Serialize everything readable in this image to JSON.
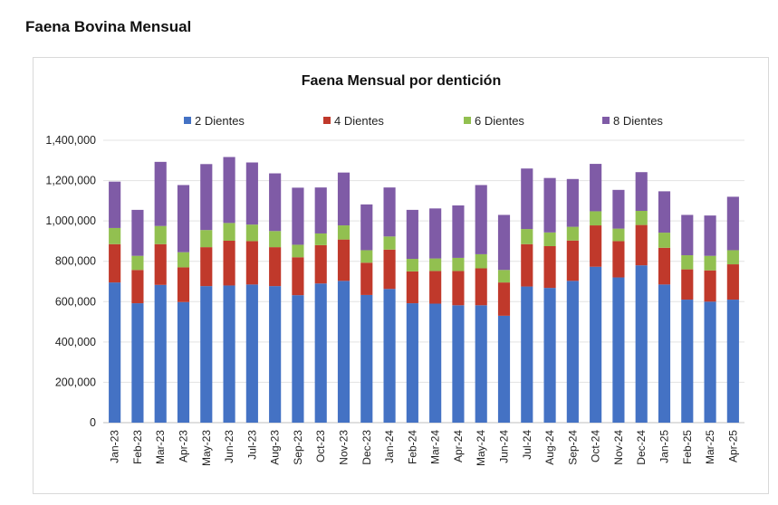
{
  "page": {
    "title": "Faena Bovina Mensual"
  },
  "chart_data": {
    "type": "bar",
    "stacked": true,
    "title": "Faena Mensual por dentición",
    "xlabel": "",
    "ylabel": "",
    "ylim": [
      0,
      1400000
    ],
    "yticks": [
      0,
      200000,
      400000,
      600000,
      800000,
      1000000,
      1200000,
      1400000
    ],
    "ytick_labels": [
      "0",
      "200,000",
      "400,000",
      "600,000",
      "800,000",
      "1,000,000",
      "1,200,000",
      "1,400,000"
    ],
    "grid": true,
    "legend_position": "top",
    "categories": [
      "Jan-23",
      "Feb-23",
      "Mar-23",
      "Apr-23",
      "May-23",
      "Jun-23",
      "Jul-23",
      "Aug-23",
      "Sep-23",
      "Oct-23",
      "Nov-23",
      "Dec-23",
      "Jan-24",
      "Feb-24",
      "Mar-24",
      "Apr-24",
      "May-24",
      "Jun-24",
      "Jul-24",
      "Aug-24",
      "Sep-24",
      "Oct-24",
      "Nov-24",
      "Dec-24",
      "Jan-25",
      "Feb-25",
      "Mar-25",
      "Apr-25"
    ],
    "series": [
      {
        "name": "2 Dientes",
        "color": "#4472c4",
        "values": [
          695000,
          592000,
          683000,
          598000,
          677000,
          680000,
          685000,
          677000,
          632000,
          690000,
          703000,
          633000,
          663000,
          592000,
          590000,
          582000,
          582000,
          530000,
          675000,
          668000,
          703000,
          773000,
          720000,
          780000,
          685000,
          610000,
          600000,
          610000
        ]
      },
      {
        "name": "4 Dientes",
        "color": "#c0392b",
        "values": [
          190000,
          165000,
          202000,
          172000,
          193000,
          222000,
          215000,
          193000,
          188000,
          190000,
          205000,
          160000,
          195000,
          158000,
          162000,
          170000,
          183000,
          165000,
          210000,
          207000,
          200000,
          205000,
          180000,
          200000,
          182000,
          150000,
          155000,
          175000
        ]
      },
      {
        "name": "6 Dientes",
        "color": "#92c050",
        "values": [
          80000,
          70000,
          90000,
          75000,
          85000,
          88000,
          82000,
          80000,
          62000,
          58000,
          70000,
          62000,
          65000,
          62000,
          62000,
          65000,
          70000,
          62000,
          75000,
          68000,
          68000,
          70000,
          62000,
          70000,
          75000,
          70000,
          72000,
          70000
        ]
      },
      {
        "name": "8 Dientes",
        "color": "#7f5ba6",
        "values": [
          230000,
          228000,
          318000,
          333000,
          327000,
          327000,
          308000,
          286000,
          283000,
          228000,
          262000,
          227000,
          243000,
          243000,
          248000,
          260000,
          343000,
          273000,
          300000,
          270000,
          237000,
          235000,
          192000,
          192000,
          205000,
          200000,
          200000,
          265000
        ]
      }
    ]
  }
}
